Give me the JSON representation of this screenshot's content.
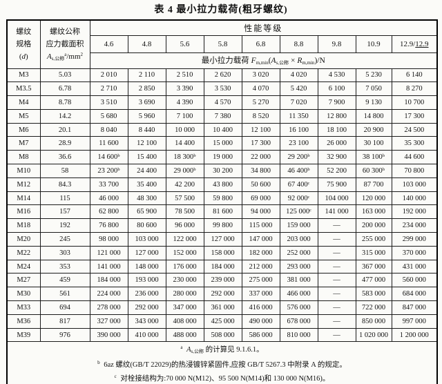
{
  "title": "表 4  最小拉力载荷(粗牙螺纹)",
  "table": {
    "header": {
      "spec_line1": [
        {
          "t": "螺纹"
        }
      ],
      "spec_line2": [
        {
          "t": "规格"
        }
      ],
      "spec_line3": [
        {
          "t": "("
        },
        {
          "t": "d",
          "it": true
        },
        {
          "t": ")"
        }
      ],
      "area_line1": [
        {
          "t": "螺纹公称"
        }
      ],
      "area_line2": [
        {
          "t": "应力截面积"
        }
      ],
      "area_line3": [
        {
          "t": "A",
          "it": true
        },
        {
          "t": "s,公称",
          "sub": true
        },
        {
          "t": "a",
          "sup": true
        },
        {
          "t": "/mm"
        },
        {
          "t": "2",
          "sup": true
        }
      ],
      "perf_label": "性能等级",
      "grades": [
        {
          "t": "4.6"
        },
        {
          "t": "4.8"
        },
        {
          "t": "5.6"
        },
        {
          "t": "5.8"
        },
        {
          "t": "6.8"
        },
        {
          "t": "8.8"
        },
        {
          "t": "9.8"
        },
        {
          "t": "10.9"
        },
        {
          "t": "12.9/",
          "u": "12.9"
        }
      ],
      "formula": [
        {
          "t": "最小拉力载荷 "
        },
        {
          "t": "F",
          "it": true
        },
        {
          "t": "m,min",
          "sub": true
        },
        {
          "t": "("
        },
        {
          "t": "A",
          "it": true
        },
        {
          "t": "s,公称",
          "sub": true
        },
        {
          "t": " × "
        },
        {
          "t": "R",
          "it": true
        },
        {
          "t": "m,min",
          "sub": true
        },
        {
          "t": ")/N"
        }
      ]
    },
    "rows": [
      {
        "spec": "M3",
        "area": "5.03",
        "values": [
          "2 010",
          "2 110",
          "2 510",
          "2 620",
          "3 020",
          "4 020",
          "4 530",
          "5 230",
          "6 140"
        ]
      },
      {
        "spec": "M3.5",
        "area": "6.78",
        "values": [
          "2 710",
          "2 850",
          "3 390",
          "3 530",
          "4 070",
          "5 420",
          "6 100",
          "7 050",
          "8 270"
        ]
      },
      {
        "spec": "M4",
        "area": "8.78",
        "values": [
          "3 510",
          "3 690",
          "4 390",
          "4 570",
          "5 270",
          "7 020",
          "7 900",
          "9 130",
          "10 700"
        ]
      },
      {
        "spec": "M5",
        "area": "14.2",
        "values": [
          "5 680",
          "5 960",
          "7 100",
          "7 380",
          "8 520",
          "11 350",
          "12 800",
          "14 800",
          "17 300"
        ]
      },
      {
        "spec": "M6",
        "area": "20.1",
        "values": [
          "8 040",
          "8 440",
          "10 000",
          "10 400",
          "12 100",
          "16 100",
          "18 100",
          "20 900",
          "24 500"
        ]
      },
      {
        "spec": "M7",
        "area": "28.9",
        "values": [
          "11 600",
          "12 100",
          "14 400",
          "15 000",
          "17 300",
          "23 100",
          "26 000",
          "30 100",
          "35 300"
        ]
      },
      {
        "spec": "M8",
        "area": "36.6",
        "values": [
          "14 600ᵇ",
          "15 400",
          "18 300ᵇ",
          "19 000",
          "22 000",
          "29 200ᵇ",
          "32 900",
          "38 100ᵇ",
          "44 600"
        ]
      },
      {
        "spec": "M10",
        "area": "58",
        "values": [
          "23 200ᵇ",
          "24 400",
          "29 000ᵇ",
          "30 200",
          "34 800",
          "46 400ᵇ",
          "52 200",
          "60 300ᵇ",
          "70 800"
        ]
      },
      {
        "spec": "M12",
        "area": "84.3",
        "values": [
          "33 700",
          "35 400",
          "42 200",
          "43 800",
          "50 600",
          "67 400ᶜ",
          "75 900",
          "87 700",
          "103 000"
        ]
      },
      {
        "spec": "M14",
        "area": "115",
        "values": [
          "46 000",
          "48 300",
          "57 500",
          "59 800",
          "69 000",
          "92 000ᶜ",
          "104 000",
          "120 000",
          "140 000"
        ]
      },
      {
        "spec": "M16",
        "area": "157",
        "values": [
          "62 800",
          "65 900",
          "78 500",
          "81 600",
          "94 000",
          "125 000ᶜ",
          "141 000",
          "163 000",
          "192 000"
        ]
      },
      {
        "spec": "M18",
        "area": "192",
        "values": [
          "76 800",
          "80 600",
          "96 000",
          "99 800",
          "115 000",
          "159 000",
          "—",
          "200 000",
          "234 000"
        ]
      },
      {
        "spec": "M20",
        "area": "245",
        "values": [
          "98 000",
          "103 000",
          "122 000",
          "127 000",
          "147 000",
          "203 000",
          "—",
          "255 000",
          "299 000"
        ]
      },
      {
        "spec": "M22",
        "area": "303",
        "values": [
          "121 000",
          "127 000",
          "152 000",
          "158 000",
          "182 000",
          "252 000",
          "—",
          "315 000",
          "370 000"
        ]
      },
      {
        "spec": "M24",
        "area": "353",
        "values": [
          "141 000",
          "148 000",
          "176 000",
          "184 000",
          "212 000",
          "293 000",
          "—",
          "367 000",
          "431 000"
        ]
      },
      {
        "spec": "M27",
        "area": "459",
        "values": [
          "184 000",
          "193 000",
          "230 000",
          "239 000",
          "275 000",
          "381 000",
          "—",
          "477 000",
          "560 000"
        ]
      },
      {
        "spec": "M30",
        "area": "561",
        "values": [
          "224 000",
          "236 000",
          "280 000",
          "292 000",
          "337 000",
          "466 000",
          "—",
          "583 000",
          "684 000"
        ]
      },
      {
        "spec": "M33",
        "area": "694",
        "values": [
          "278 000",
          "292 000",
          "347 000",
          "361 000",
          "416 000",
          "576 000",
          "—",
          "722 000",
          "847 000"
        ]
      },
      {
        "spec": "M36",
        "area": "817",
        "values": [
          "327 000",
          "343 000",
          "408 000",
          "425 000",
          "490 000",
          "678 000",
          "—",
          "850 000",
          "997 000"
        ]
      },
      {
        "spec": "M39",
        "area": "976",
        "values": [
          "390 000",
          "410 000",
          "488 000",
          "508 000",
          "586 000",
          "810 000",
          "—",
          "1 020 000",
          "1 200 000"
        ]
      }
    ],
    "footnotes": [
      [
        {
          "t": "a",
          "sup": true
        },
        {
          "t": " "
        },
        {
          "t": "A",
          "it": true
        },
        {
          "t": "s,公称",
          "sub": true
        },
        {
          "t": " 的计算见 9.1.6.1。"
        }
      ],
      [
        {
          "t": "b",
          "sup": true
        },
        {
          "t": " 6az 螺纹(GB/T 22029)的热浸镀锌紧固件,应按 GB/T 5267.3 中附录 A 的规定。"
        }
      ],
      [
        {
          "t": "c",
          "sup": true
        },
        {
          "t": " 对栓接结构为:70 000 N(M12)、95 500 N(M14)和 130 000 N(M16)。"
        }
      ]
    ]
  }
}
